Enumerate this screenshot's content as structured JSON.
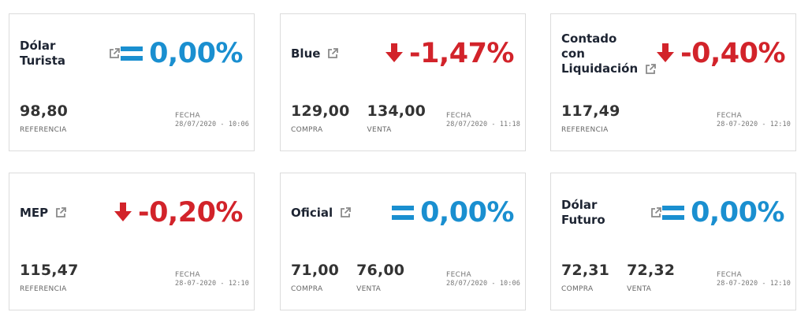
{
  "colors": {
    "neutral": "#1a8fd0",
    "down": "#d2232a",
    "title": "#1d2432",
    "value": "#333333",
    "muted": "#777777",
    "border": "#dcdcdc"
  },
  "cards": [
    {
      "title": "Dólar Turista",
      "trend": "equal",
      "trend_icon": "equals-icon",
      "change": "0,00%",
      "values": [
        {
          "value": "98,80",
          "label": "REFERENCIA"
        }
      ],
      "date_label": "FECHA",
      "date": "28/07/2020 - 10:06"
    },
    {
      "title": "Blue",
      "trend": "down",
      "trend_icon": "arrow-down-icon",
      "change": "-1,47%",
      "values": [
        {
          "value": "129,00",
          "label": "COMPRA"
        },
        {
          "value": "134,00",
          "label": "VENTA"
        }
      ],
      "date_label": "FECHA",
      "date": "28/07/2020 - 11:18"
    },
    {
      "title": "Contado con Liquidación",
      "trend": "down",
      "trend_icon": "arrow-down-icon",
      "change": "-0,40%",
      "values": [
        {
          "value": "117,49",
          "label": "REFERENCIA"
        }
      ],
      "date_label": "FECHA",
      "date": "28-07-2020 - 12:10"
    },
    {
      "title": "MEP",
      "trend": "down",
      "trend_icon": "arrow-down-icon",
      "change": "-0,20%",
      "values": [
        {
          "value": "115,47",
          "label": "REFERENCIA"
        }
      ],
      "date_label": "FECHA",
      "date": "28-07-2020 - 12:10"
    },
    {
      "title": "Oficial",
      "trend": "equal",
      "trend_icon": "equals-icon",
      "change": "0,00%",
      "values": [
        {
          "value": "71,00",
          "label": "COMPRA"
        },
        {
          "value": "76,00",
          "label": "VENTA"
        }
      ],
      "date_label": "FECHA",
      "date": "28/07/2020 - 10:06"
    },
    {
      "title": "Dólar Futuro",
      "trend": "equal",
      "trend_icon": "equals-icon",
      "change": "0,00%",
      "values": [
        {
          "value": "72,31",
          "label": "COMPRA"
        },
        {
          "value": "72,32",
          "label": "VENTA"
        }
      ],
      "date_label": "FECHA",
      "date": "28-07-2020 - 12:10"
    }
  ]
}
